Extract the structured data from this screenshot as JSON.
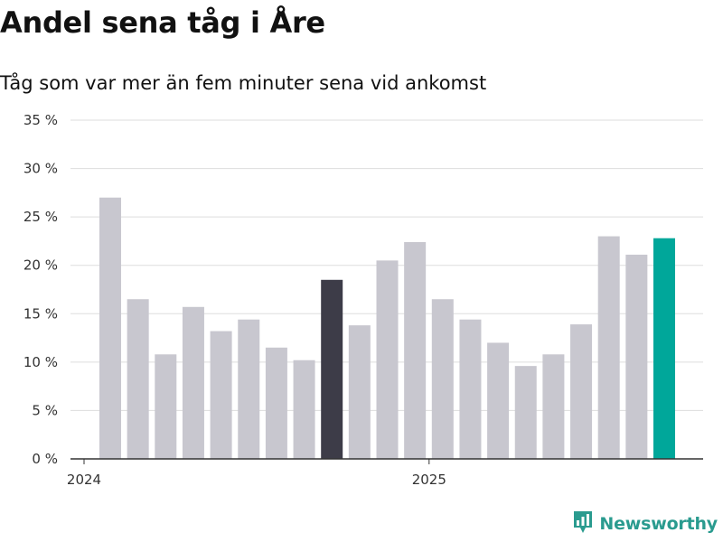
{
  "title": "Andel sena tåg i Åre",
  "subtitle": "Tåg som var mer än fem minuter sena vid ankomst",
  "brand": {
    "name": "Newsworthy",
    "icon": "bar-chart-pin-icon",
    "color": "#2a9b8f"
  },
  "colors": {
    "bar_default": "#c8c7cf",
    "bar_highlight_dark": "#3d3c48",
    "bar_highlight_latest": "#00a79a",
    "grid": "#dddddd",
    "axis": "#333333"
  },
  "chart_data": {
    "type": "bar",
    "title": "Andel sena tåg i Åre",
    "subtitle": "Tåg som var mer än fem minuter sena vid ankomst",
    "xlabel": "",
    "ylabel": "",
    "unit": "%",
    "ylim": [
      0,
      35
    ],
    "yticks": [
      0,
      5,
      10,
      15,
      20,
      25,
      30,
      35
    ],
    "ytick_labels": [
      "0 %",
      "5 %",
      "10 %",
      "15 %",
      "20 %",
      "25 %",
      "30 %",
      "35 %"
    ],
    "x_axis_labels": [
      {
        "label": "2024",
        "at_bar": 0
      },
      {
        "label": "2025",
        "at_bar": 12
      }
    ],
    "grid": true,
    "legend": "none",
    "values": [
      27,
      16.5,
      10.8,
      15.7,
      13.2,
      14.4,
      11.5,
      10.2,
      18.5,
      13.8,
      20.5,
      22.4,
      16.5,
      14.4,
      12.0,
      9.6,
      10.8,
      13.9,
      23.0,
      21.1,
      22.8
    ],
    "highlights": [
      {
        "index": 8,
        "color": "#3d3c48"
      },
      {
        "index": 20,
        "color": "#00a79a"
      }
    ]
  }
}
